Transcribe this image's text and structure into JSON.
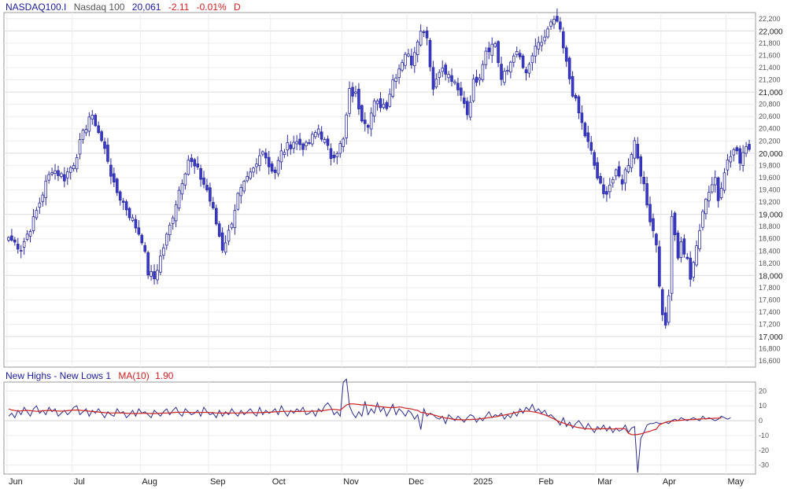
{
  "chart_data": [
    {
      "type": "candlestick",
      "symbol": "NASDAQ100.I",
      "name": "Nasdaq 100",
      "last": "20,061",
      "change": "-2.11",
      "change_pct": "-0.01%",
      "period": "D",
      "ylim": [
        16500,
        22300
      ],
      "y_major_ticks": [
        17000,
        18000,
        19000,
        20000,
        21000,
        22000
      ],
      "y_minor_ticks": [
        16600,
        16800,
        17200,
        17400,
        17600,
        17800,
        18200,
        18400,
        18600,
        18800,
        19200,
        19400,
        19600,
        19800,
        20200,
        20400,
        20600,
        20800,
        21200,
        21400,
        21600,
        21800,
        22200
      ],
      "x_labels": [
        "Jun",
        "Jul",
        "Aug",
        "Sep",
        "Oct",
        "Nov",
        "Dec",
        "2025",
        "Feb",
        "Mar",
        "Apr",
        "May"
      ],
      "x_label_index": [
        0,
        21,
        43,
        65,
        85,
        108,
        129,
        150,
        171,
        190,
        211,
        232
      ],
      "grid": true,
      "up_color": "#ffffff",
      "down_color": "#3a3ad0",
      "wick_color": "#2b2b9e",
      "close_anchors": [
        [
          0,
          18620
        ],
        [
          4,
          18450
        ],
        [
          8,
          18900
        ],
        [
          12,
          19500
        ],
        [
          14,
          19750
        ],
        [
          18,
          19600
        ],
        [
          21,
          19850
        ],
        [
          26,
          20600
        ],
        [
          28,
          20500
        ],
        [
          32,
          19900
        ],
        [
          34,
          19450
        ],
        [
          38,
          19100
        ],
        [
          40,
          18900
        ],
        [
          43,
          18600
        ],
        [
          45,
          18050
        ],
        [
          47,
          17950
        ],
        [
          49,
          18300
        ],
        [
          52,
          18800
        ],
        [
          55,
          19400
        ],
        [
          58,
          19900
        ],
        [
          61,
          19700
        ],
        [
          64,
          19400
        ],
        [
          66,
          19050
        ],
        [
          69,
          18450
        ],
        [
          71,
          18700
        ],
        [
          74,
          19300
        ],
        [
          77,
          19550
        ],
        [
          80,
          19800
        ],
        [
          82,
          20100
        ],
        [
          84,
          19800
        ],
        [
          86,
          19700
        ],
        [
          88,
          20000
        ],
        [
          92,
          20200
        ],
        [
          96,
          20100
        ],
        [
          100,
          20400
        ],
        [
          104,
          19950
        ],
        [
          106,
          20050
        ],
        [
          108,
          20200
        ],
        [
          110,
          21000
        ],
        [
          112,
          20950
        ],
        [
          114,
          20600
        ],
        [
          116,
          20500
        ],
        [
          118,
          20800
        ],
        [
          122,
          20800
        ],
        [
          124,
          21200
        ],
        [
          126,
          21400
        ],
        [
          128,
          21650
        ],
        [
          130,
          21500
        ],
        [
          132,
          21900
        ],
        [
          134,
          22050
        ],
        [
          135,
          21900
        ],
        [
          137,
          21050
        ],
        [
          139,
          21400
        ],
        [
          141,
          21300
        ],
        [
          143,
          21200
        ],
        [
          145,
          21000
        ],
        [
          147,
          20850
        ],
        [
          148,
          20650
        ],
        [
          150,
          21150
        ],
        [
          152,
          21300
        ],
        [
          154,
          21700
        ],
        [
          157,
          21800
        ],
        [
          159,
          21200
        ],
        [
          161,
          21350
        ],
        [
          163,
          21650
        ],
        [
          165,
          21550
        ],
        [
          167,
          21250
        ],
        [
          169,
          21600
        ],
        [
          171,
          21750
        ],
        [
          173,
          21900
        ],
        [
          175,
          22100
        ],
        [
          177,
          22150
        ],
        [
          178,
          21950
        ],
        [
          180,
          21450
        ],
        [
          182,
          21000
        ],
        [
          184,
          20650
        ],
        [
          186,
          20300
        ],
        [
          188,
          20000
        ],
        [
          190,
          19600
        ],
        [
          192,
          19300
        ],
        [
          194,
          19500
        ],
        [
          196,
          19650
        ],
        [
          198,
          19550
        ],
        [
          200,
          19850
        ],
        [
          202,
          20200
        ],
        [
          204,
          19700
        ],
        [
          206,
          19150
        ],
        [
          207,
          18950
        ],
        [
          209,
          18550
        ],
        [
          210,
          17800
        ],
        [
          211,
          17400
        ],
        [
          212,
          17150
        ],
        [
          213,
          17700
        ],
        [
          214,
          18900
        ],
        [
          215,
          18650
        ],
        [
          216,
          18300
        ],
        [
          217,
          18500
        ],
        [
          219,
          18300
        ],
        [
          220,
          17950
        ],
        [
          221,
          18150
        ],
        [
          223,
          18800
        ],
        [
          224,
          19100
        ],
        [
          226,
          19400
        ],
        [
          228,
          19600
        ],
        [
          229,
          19250
        ],
        [
          231,
          19750
        ],
        [
          233,
          19950
        ],
        [
          234,
          20050
        ],
        [
          236,
          19900
        ],
        [
          238,
          20150
        ],
        [
          239,
          20061
        ]
      ]
    },
    {
      "type": "line",
      "title": "New Highs - New Lows 1",
      "ma_label": "MA(10)",
      "ma_value": "1.90",
      "ylim": [
        -36,
        26
      ],
      "y_ticks": [
        20,
        10,
        0,
        -10,
        -20,
        -30
      ],
      "x_labels": [
        "Jun",
        "Jul",
        "Aug",
        "Sep",
        "Oct",
        "Nov",
        "Dec",
        "2025",
        "Feb",
        "Mar",
        "Apr",
        "May"
      ],
      "series": [
        {
          "name": "New Highs - New Lows",
          "color": "#2b2b8c",
          "values": [
            3,
            5,
            2,
            7,
            4,
            9,
            6,
            3,
            8,
            10,
            5,
            7,
            4,
            9,
            6,
            8,
            3,
            5,
            7,
            4,
            6,
            9,
            10,
            4,
            6,
            8,
            3,
            7,
            5,
            8,
            5,
            2,
            6,
            4,
            3,
            8,
            5,
            6,
            2,
            4,
            7,
            3,
            8,
            5,
            6,
            4,
            2,
            7,
            5,
            3,
            6,
            8,
            4,
            7,
            9,
            5,
            3,
            8,
            6,
            4,
            5,
            7,
            3,
            9,
            6,
            4,
            5,
            2,
            7,
            3,
            6,
            4,
            8,
            5,
            3,
            7,
            4,
            6,
            8,
            5,
            3,
            9,
            4,
            7,
            5,
            6,
            8,
            4,
            10,
            6,
            3,
            7,
            5,
            8,
            6,
            9,
            4,
            5,
            7,
            3,
            8,
            6,
            10,
            12,
            9,
            4,
            6,
            3,
            26,
            28,
            10,
            5,
            2,
            6,
            3,
            13,
            4,
            8,
            5,
            12,
            6,
            9,
            3,
            7,
            11,
            4,
            8,
            6,
            3,
            7,
            5,
            1,
            4,
            -6,
            8,
            3,
            5,
            4,
            2,
            1,
            3,
            -2,
            4,
            2,
            0,
            3,
            1,
            -1,
            2,
            4,
            3,
            -1,
            2,
            0,
            3,
            6,
            2,
            4,
            3,
            5,
            1,
            4,
            2,
            6,
            3,
            8,
            5,
            9,
            7,
            11,
            6,
            8,
            5,
            7,
            3,
            4,
            2,
            0,
            -3,
            2,
            -4,
            -1,
            -5,
            -2,
            0,
            -3,
            -6,
            -2,
            -5,
            -8,
            -4,
            -6,
            -3,
            -7,
            -4,
            -8,
            -5,
            -7,
            -6,
            -3,
            -8,
            -5,
            -4,
            -35,
            -12,
            -8,
            -3,
            -2,
            -2,
            -1,
            -2,
            -2,
            -1,
            -2,
            0,
            1,
            0,
            2,
            1,
            0,
            1,
            2,
            1,
            0,
            3,
            1,
            2,
            1,
            0,
            1,
            3,
            2,
            1,
            2
          ]
        },
        {
          "name": "MA(10)",
          "color": "#cc2222",
          "values": [
            8.0,
            7.2,
            6.8,
            6.5,
            6.6,
            6.8,
            6.9,
            6.7,
            6.5,
            6.3,
            6.4,
            6.6,
            6.8,
            6.9,
            6.8,
            6.6,
            6.5,
            6.4,
            6.5,
            6.7,
            6.9,
            7.1,
            7.2,
            7.0,
            6.8,
            6.6,
            6.4,
            6.2,
            6.0,
            5.8,
            5.6,
            5.4,
            5.3,
            5.2,
            5.2,
            5.3,
            5.3,
            5.2,
            5.0,
            4.9,
            4.8,
            4.8,
            4.9,
            5.0,
            5.0,
            4.9,
            4.8,
            4.8,
            4.9,
            5.0,
            5.1,
            5.2,
            5.3,
            5.4,
            5.6,
            5.7,
            5.7,
            5.7,
            5.6,
            5.5,
            5.5,
            5.5,
            5.5,
            5.6,
            5.6,
            5.5,
            5.4,
            5.2,
            5.1,
            5.1,
            5.1,
            5.1,
            5.2,
            5.2,
            5.2,
            5.3,
            5.3,
            5.3,
            5.4,
            5.4,
            5.4,
            5.4,
            5.5,
            5.6,
            5.7,
            5.8,
            5.9,
            6.0,
            6.2,
            6.3,
            6.3,
            6.3,
            6.2,
            6.2,
            6.2,
            6.3,
            6.3,
            6.3,
            6.4,
            6.4,
            6.5,
            6.6,
            6.9,
            7.3,
            7.6,
            7.6,
            7.4,
            7.1,
            8.8,
            10.6,
            11.2,
            11.3,
            11.1,
            10.9,
            10.6,
            10.8,
            10.5,
            10.3,
            9.9,
            9.6,
            9.4,
            9.2,
            9.0,
            8.8,
            9.0,
            8.9,
            9.2,
            9.0,
            8.4,
            8.2,
            7.9,
            7.3,
            6.9,
            5.6,
            5.4,
            4.6,
            4.5,
            3.9,
            3.4,
            2.7,
            2.3,
            1.7,
            1.6,
            1.1,
            0.9,
            0.6,
            0.7,
            0.5,
            0.7,
            0.8,
            0.9,
            1.0,
            1.2,
            1.5,
            1.7,
            2.1,
            2.3,
            2.6,
            2.9,
            3.5,
            3.8,
            4.2,
            4.7,
            5.2,
            5.7,
            6.1,
            6.3,
            6.4,
            6.4,
            6.0,
            5.7,
            5.3,
            4.5,
            3.9,
            3.1,
            2.1,
            1.2,
            0.0,
            -1.0,
            -1.6,
            -2.4,
            -3.0,
            -3.6,
            -4.3,
            -4.7,
            -5.0,
            -5.4,
            -5.5,
            -5.6,
            -5.8,
            -5.6,
            -5.5,
            -5.3,
            -5.5,
            -5.5,
            -5.7,
            -5.5,
            -5.3,
            -5.3,
            -5.5,
            -8.5,
            -9.4,
            -9.5,
            -9.3,
            -8.9,
            -8.3,
            -7.6,
            -7.1,
            -6.3,
            -5.8,
            -2.9,
            -1.9,
            -1.1,
            -0.6,
            -0.3,
            -0.1,
            0.1,
            0.3,
            0.5,
            0.6,
            0.7,
            0.8,
            0.9,
            1.1,
            1.2,
            1.3,
            1.4,
            1.5,
            1.6,
            1.7,
            1.9
          ]
        }
      ]
    }
  ]
}
